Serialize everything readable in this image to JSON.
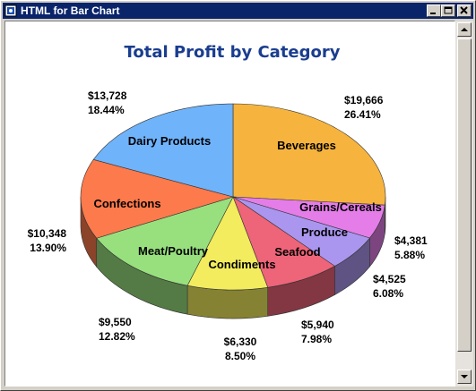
{
  "window": {
    "title": "HTML for Bar Chart"
  },
  "chart_data": {
    "type": "pie",
    "title": "Total Profit by Category",
    "slices": [
      {
        "label": "Beverages",
        "value": 19666,
        "value_text": "$19,666",
        "percent_text": "26.41%",
        "color": "#f6b43e"
      },
      {
        "label": "Grains/Cereals",
        "value": 4381,
        "value_text": "$4,381",
        "percent_text": "5.88%",
        "color": "#e47de8"
      },
      {
        "label": "Produce",
        "value": 4525,
        "value_text": "$4,525",
        "percent_text": "6.08%",
        "color": "#aa96ee"
      },
      {
        "label": "Seafood",
        "value": 5940,
        "value_text": "$5,940",
        "percent_text": "7.98%",
        "color": "#ee6479"
      },
      {
        "label": "Condiments",
        "value": 6330,
        "value_text": "$6,330",
        "percent_text": "8.50%",
        "color": "#f2ec5e"
      },
      {
        "label": "Meat/Poultry",
        "value": 9550,
        "value_text": "$9,550",
        "percent_text": "12.82%",
        "color": "#98e07e"
      },
      {
        "label": "Confections",
        "value": 10348,
        "value_text": "$10,348",
        "percent_text": "13.90%",
        "color": "#fd7a4c"
      },
      {
        "label": "Dairy Products",
        "value": 13728,
        "value_text": "$13,728",
        "percent_text": "18.44%",
        "color": "#6fb3fb"
      }
    ]
  }
}
